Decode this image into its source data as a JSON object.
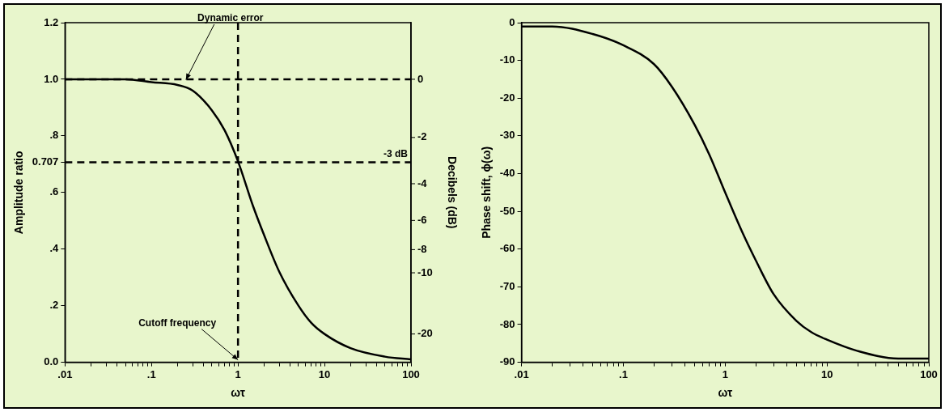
{
  "chart_data": [
    {
      "type": "line",
      "log": "x",
      "grid": false,
      "legend": false,
      "marker": "none",
      "line_style": "solid",
      "xlabel": "ωτ",
      "ylabel": "Amplitude ratio",
      "y2label": "Decibels (dB)",
      "x": [
        0.01,
        0.02,
        0.05,
        0.1,
        0.2,
        0.3,
        0.5,
        0.7,
        1,
        1.5,
        2,
        3,
        5,
        7,
        10,
        20,
        50,
        100
      ],
      "series": [
        {
          "color": "#000000",
          "values": [
            1.0,
            1.0,
            1.0,
            0.99,
            0.98,
            0.96,
            0.89,
            0.82,
            0.71,
            0.55,
            0.45,
            0.32,
            0.2,
            0.14,
            0.1,
            0.05,
            0.02,
            0.01
          ]
        }
      ],
      "xlim": [
        0.01,
        100
      ],
      "xticks": [
        {
          "value": 0.01,
          "label": ".01"
        },
        {
          "value": 0.02,
          "label": null
        },
        {
          "value": 0.03,
          "label": null
        },
        {
          "value": 0.04,
          "label": null
        },
        {
          "value": 0.05,
          "label": null
        },
        {
          "value": 0.06,
          "label": null
        },
        {
          "value": 0.07,
          "label": null
        },
        {
          "value": 0.08,
          "label": null
        },
        {
          "value": 0.09,
          "label": null
        },
        {
          "value": 0.1,
          "label": ".1"
        },
        {
          "value": 0.2,
          "label": null
        },
        {
          "value": 0.3,
          "label": null
        },
        {
          "value": 0.4,
          "label": null
        },
        {
          "value": 0.5,
          "label": null
        },
        {
          "value": 0.6,
          "label": null
        },
        {
          "value": 0.7,
          "label": null
        },
        {
          "value": 0.8,
          "label": null
        },
        {
          "value": 0.9,
          "label": null
        },
        1,
        {
          "value": 2,
          "label": null
        },
        {
          "value": 3,
          "label": null
        },
        {
          "value": 4,
          "label": null
        },
        {
          "value": 5,
          "label": null
        },
        {
          "value": 6,
          "label": null
        },
        {
          "value": 7,
          "label": null
        },
        {
          "value": 8,
          "label": null
        },
        {
          "value": 9,
          "label": null
        },
        10,
        {
          "value": 20,
          "label": null
        },
        {
          "value": 30,
          "label": null
        },
        {
          "value": 40,
          "label": null
        },
        {
          "value": 50,
          "label": null
        },
        {
          "value": 60,
          "label": null
        },
        {
          "value": 70,
          "label": null
        },
        {
          "value": 80,
          "label": null
        },
        {
          "value": 90,
          "label": null
        },
        100
      ],
      "ylim": [
        0,
        1.2
      ],
      "yticks": [
        {
          "value": 0,
          "label": "0.0"
        },
        {
          "value": 0.2,
          "label": ".2"
        },
        {
          "value": 0.4,
          "label": ".4"
        },
        {
          "value": 0.6,
          "label": ".6"
        },
        {
          "value": 0.707,
          "label": "0.707"
        },
        {
          "value": 0.8,
          "label": ".8"
        },
        {
          "value": 1,
          "label": "1.0"
        },
        {
          "value": 1.2,
          "label": "1.2"
        }
      ],
      "ref_lines": [
        {
          "axis": "y",
          "value": 1,
          "line_style": "dashed",
          "color": "#000000"
        },
        {
          "axis": "y",
          "value": 0.707,
          "label": "-3 dB",
          "line_style": "dashed",
          "color": "#000000"
        },
        {
          "axis": "x",
          "value": 1,
          "line_style": "dashed",
          "color": "#000000"
        }
      ],
      "annotations": [
        {
          "text": "Dynamic error",
          "x": 0.25,
          "y": 0.99
        },
        {
          "text": "Cutoff frequency",
          "x": 1,
          "y": 0
        },
        "0",
        "-2",
        "-4",
        "-6",
        "-8",
        "-10",
        "-20"
      ]
    },
    {
      "type": "line",
      "log": "x",
      "grid": false,
      "legend": false,
      "marker": "none",
      "line_style": "solid",
      "xlabel": "ωτ",
      "ylabel": "Phase shift, ϕ(ω)",
      "x": [
        0.01,
        0.02,
        0.05,
        0.1,
        0.2,
        0.3,
        0.5,
        0.7,
        1,
        1.5,
        2,
        3,
        5,
        7,
        10,
        20,
        50,
        100
      ],
      "series": [
        {
          "color": "#000000",
          "values": [
            -1,
            -1,
            -3,
            -6,
            -11,
            -17,
            -27,
            -35,
            -45,
            -56,
            -63,
            -72,
            -79,
            -82,
            -84,
            -87,
            -89,
            -89
          ]
        }
      ],
      "xlim": [
        0.01,
        100
      ],
      "xticks": [
        {
          "value": 0.01,
          "label": ".01"
        },
        {
          "value": 0.02,
          "label": null
        },
        {
          "value": 0.03,
          "label": null
        },
        {
          "value": 0.04,
          "label": null
        },
        {
          "value": 0.05,
          "label": null
        },
        {
          "value": 0.06,
          "label": null
        },
        {
          "value": 0.07,
          "label": null
        },
        {
          "value": 0.08,
          "label": null
        },
        {
          "value": 0.09,
          "label": null
        },
        {
          "value": 0.1,
          "label": ".1"
        },
        {
          "value": 0.2,
          "label": null
        },
        {
          "value": 0.3,
          "label": null
        },
        {
          "value": 0.4,
          "label": null
        },
        {
          "value": 0.5,
          "label": null
        },
        {
          "value": 0.6,
          "label": null
        },
        {
          "value": 0.7,
          "label": null
        },
        {
          "value": 0.8,
          "label": null
        },
        {
          "value": 0.9,
          "label": null
        },
        1,
        {
          "value": 2,
          "label": null
        },
        {
          "value": 3,
          "label": null
        },
        {
          "value": 4,
          "label": null
        },
        {
          "value": 5,
          "label": null
        },
        {
          "value": 6,
          "label": null
        },
        {
          "value": 7,
          "label": null
        },
        {
          "value": 8,
          "label": null
        },
        {
          "value": 9,
          "label": null
        },
        10,
        {
          "value": 20,
          "label": null
        },
        {
          "value": 30,
          "label": null
        },
        {
          "value": 40,
          "label": null
        },
        {
          "value": 50,
          "label": null
        },
        {
          "value": 60,
          "label": null
        },
        {
          "value": 70,
          "label": null
        },
        {
          "value": 80,
          "label": null
        },
        {
          "value": 90,
          "label": null
        },
        100
      ],
      "ylim": [
        -90,
        0
      ],
      "yticks": [
        -90,
        -80,
        -70,
        -60,
        -50,
        -40,
        -30,
        -20,
        -10,
        0
      ]
    }
  ]
}
